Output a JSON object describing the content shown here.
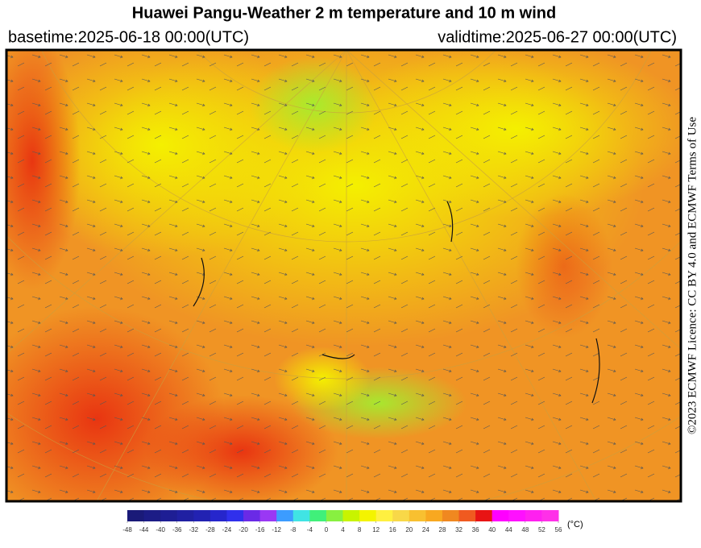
{
  "header": {
    "title": "Huawei Pangu-Weather  2 m temperature and 10 m wind",
    "basetime": "basetime:2025-06-18 00:00(UTC)",
    "validtime": "validtime:2025-06-27 00:00(UTC)"
  },
  "licence": "©2023 ECMWF Licence: CC BY 4.0 and ECMWF Terms of Use",
  "colorbar": {
    "unit": "(°C)",
    "ticks": [
      -48,
      -44,
      -40,
      -36,
      -32,
      -28,
      -24,
      -20,
      -16,
      -12,
      -8,
      -4,
      0,
      4,
      8,
      12,
      16,
      20,
      24,
      28,
      32,
      36,
      40,
      44,
      48,
      52,
      56
    ],
    "colors": [
      "#1a1a78",
      "#1c1c86",
      "#1e1e94",
      "#2020a2",
      "#2222b2",
      "#2626cc",
      "#3030ec",
      "#6a2ae6",
      "#9a38f4",
      "#3c9cff",
      "#40e4e4",
      "#40f07a",
      "#88f040",
      "#c8f400",
      "#f4f400",
      "#fff040",
      "#f8d848",
      "#f8c030",
      "#f8a820",
      "#f08820",
      "#f05a20",
      "#e81414",
      "#ff00ff",
      "#ff10ff",
      "#ff20f0",
      "#ff30e8"
    ]
  }
}
